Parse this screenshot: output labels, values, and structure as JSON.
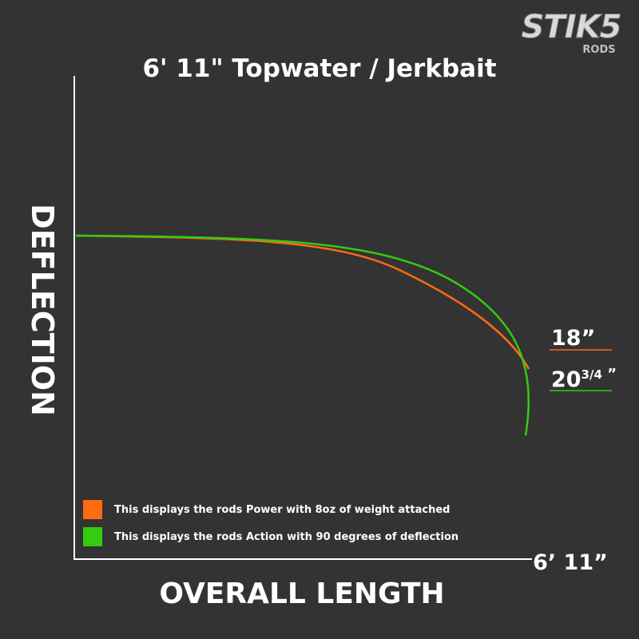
{
  "logo": {
    "name": "STIK5",
    "sub": "RODS"
  },
  "title": "6' 11\"  Topwater / Jerkbait",
  "y_axis_label": "DEFLECTION",
  "x_axis_label": "OVERALL LENGTH",
  "x_end_label": "6’ 11”",
  "measurements": [
    {
      "text": "18”"
    },
    {
      "whole": "20",
      "fraction": "3/4",
      "mark": " ”"
    }
  ],
  "legend": [
    {
      "label": "This displays the rods Power with 8oz of weight attached"
    },
    {
      "label": "This displays the rods Action with 90 degrees of deflection"
    }
  ]
}
